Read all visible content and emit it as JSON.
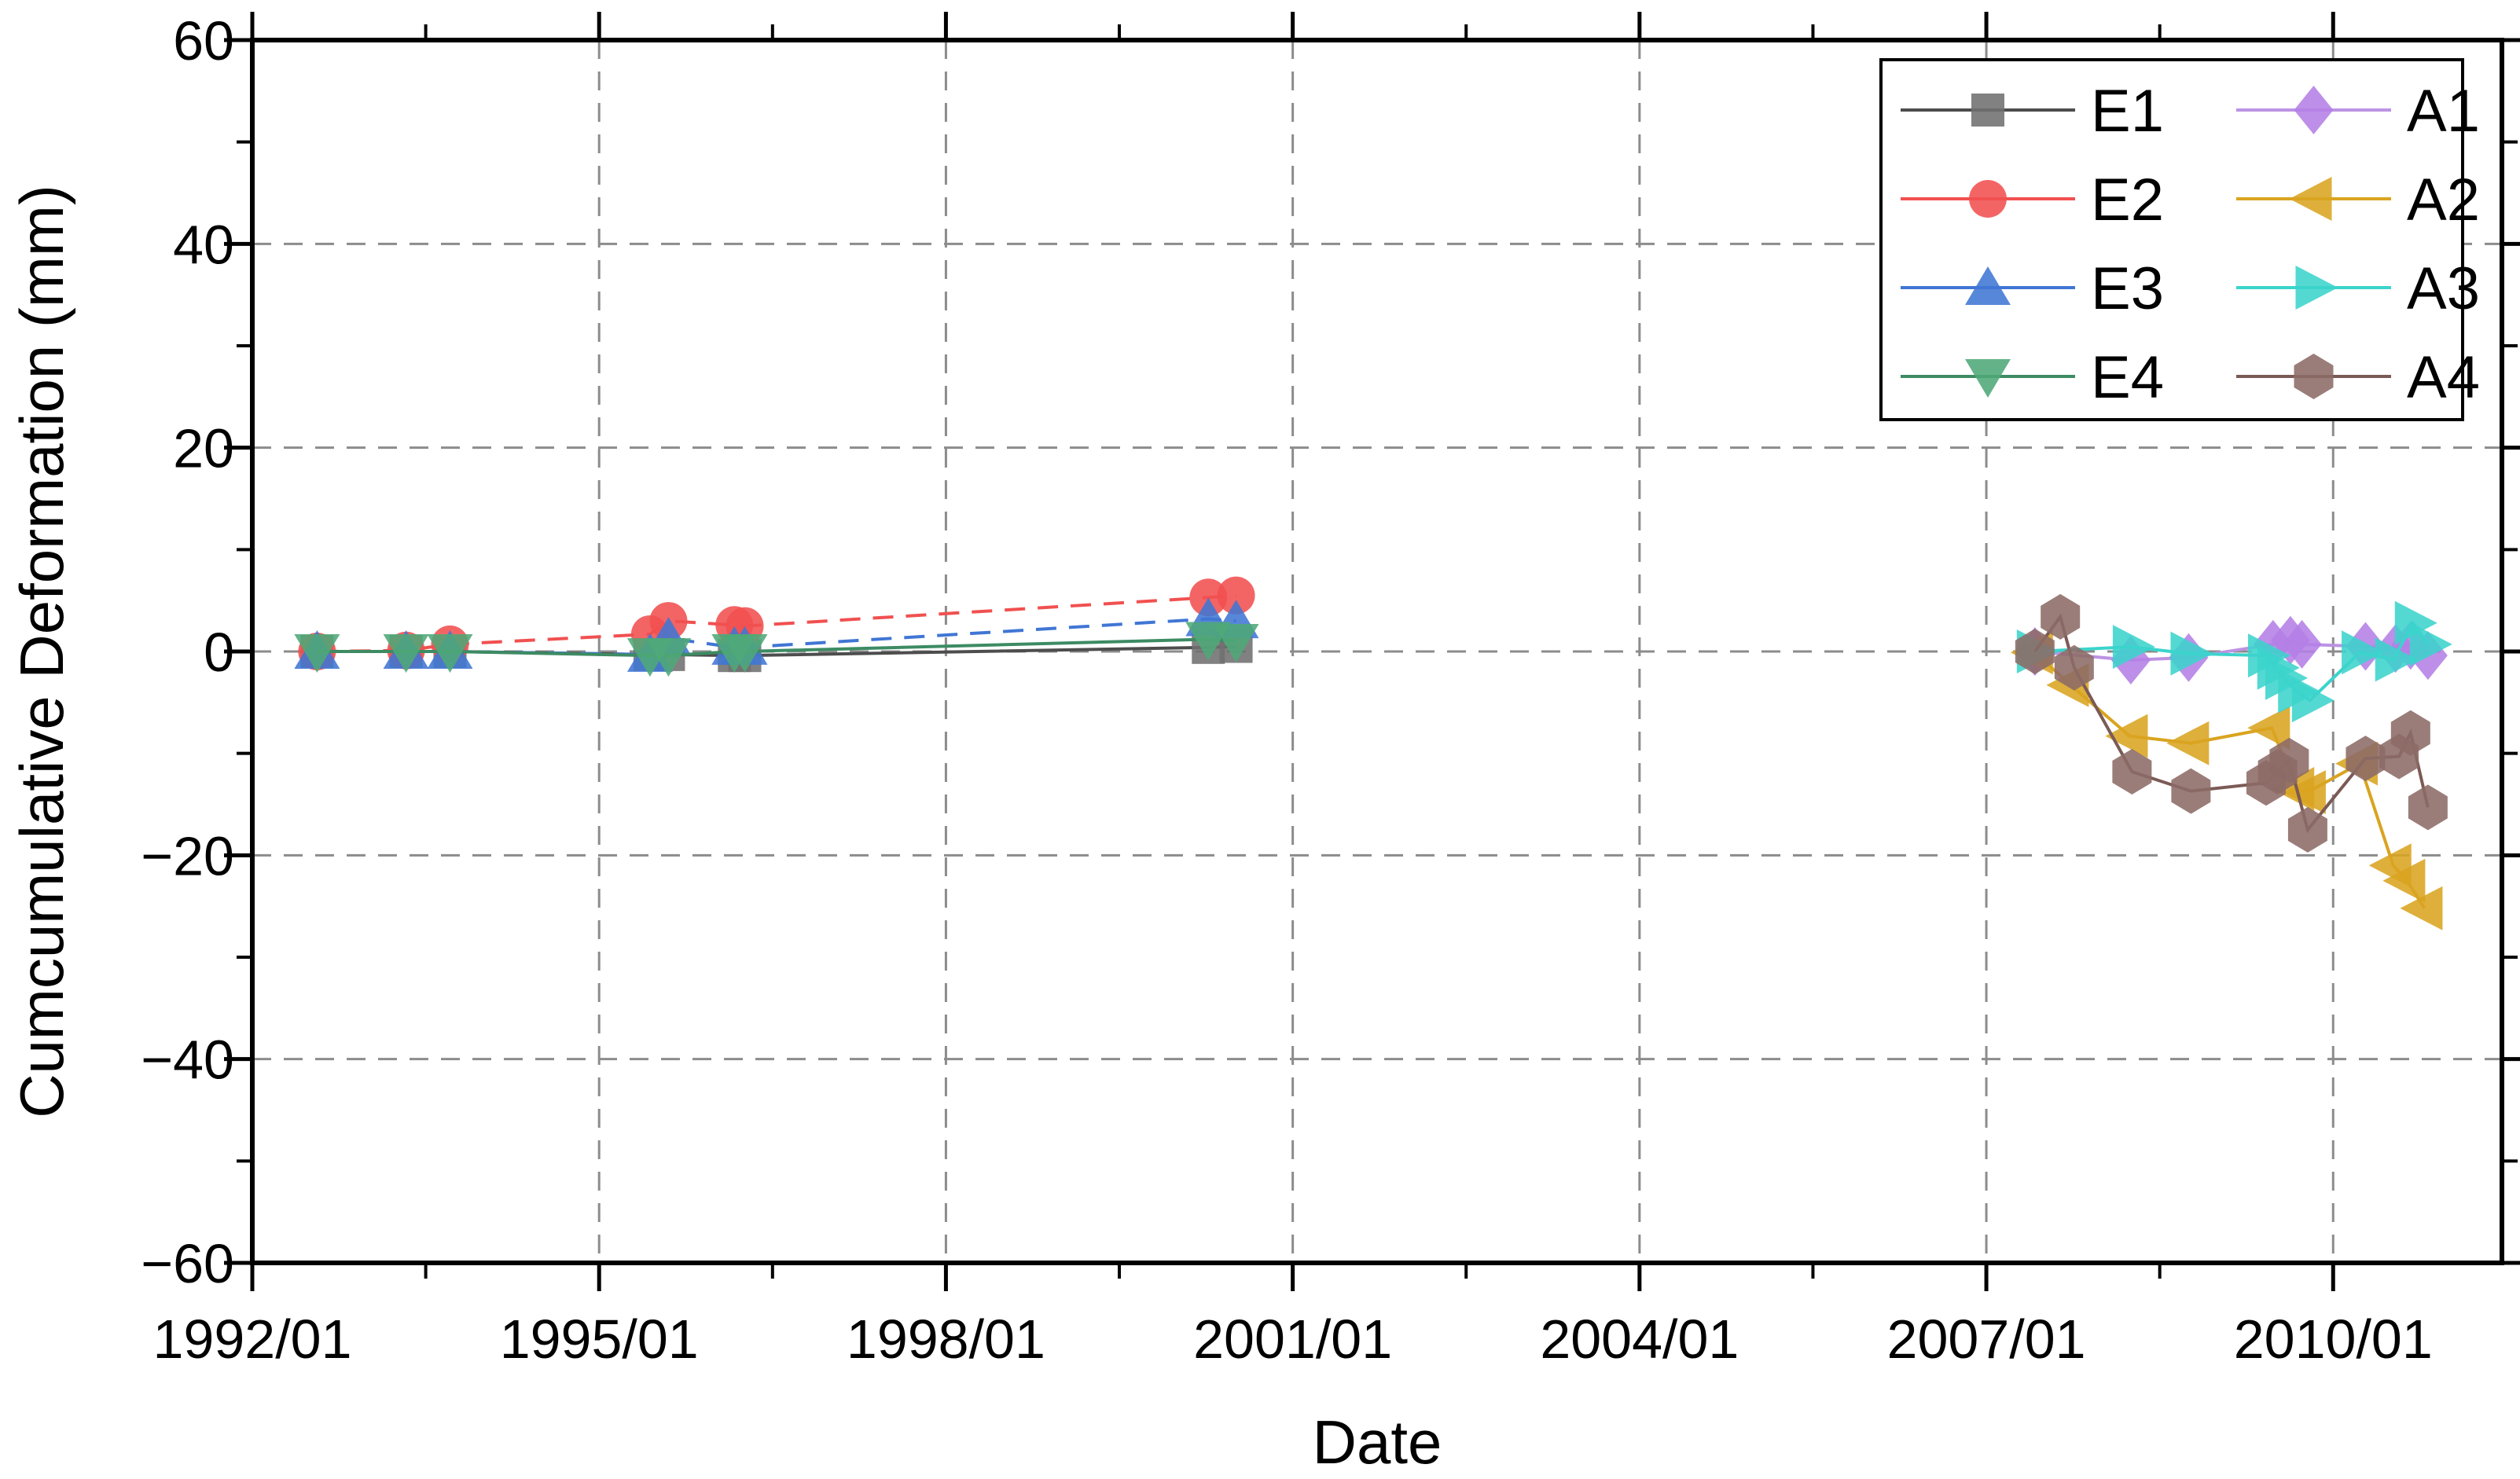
{
  "chart_data": {
    "type": "line",
    "title": "",
    "xlabel": "Date",
    "ylabel": "Cumcumulative Deformation (mm)",
    "x_tick_labels": [
      "1992/01",
      "1995/01",
      "1998/01",
      "2001/01",
      "2004/01",
      "2007/01",
      "2010/01"
    ],
    "x_tick_years": [
      1992,
      1995,
      1998,
      2001,
      2004,
      2007,
      2010
    ],
    "xlim_years": [
      1992.0,
      2011.46
    ],
    "x_minor_step_years": 1.5,
    "y_tick_labels": [
      "60",
      "40",
      "20",
      "0",
      "−20",
      "−40",
      "−60"
    ],
    "y_tick_values": [
      60,
      40,
      20,
      0,
      -20,
      -40,
      -60
    ],
    "y_minor_step": 10,
    "ylim": [
      -60,
      60
    ],
    "grid": "dashed gray at major ticks, both axes",
    "legend_position": "top-right inside box, 2 columns",
    "background_color": "#ffffff",
    "grid_color": "#8c8c8c",
    "frame_color": "#000000",
    "series": [
      {
        "name": "E1",
        "marker": "square",
        "color": "#6f6f6f",
        "line_color": "#4d4d4d",
        "line_style": "solid",
        "x": [
          1992.56,
          1993.33,
          1993.71,
          1995.44,
          1995.6,
          1996.17,
          1996.26,
          2000.27,
          2000.51
        ],
        "y": [
          0,
          0,
          0,
          -0.3,
          -0.3,
          -0.4,
          -0.4,
          0.4,
          0.5
        ]
      },
      {
        "name": "E2",
        "marker": "circle",
        "color": "#f15050",
        "line_color": "#f15050",
        "line_style": "dash",
        "x": [
          1992.56,
          1993.33,
          1993.71,
          1995.44,
          1995.6,
          1996.17,
          1996.26,
          2000.27,
          2000.51
        ],
        "y": [
          0,
          0.1,
          0.7,
          1.7,
          3.0,
          2.6,
          2.5,
          5.3,
          5.5
        ]
      },
      {
        "name": "E3",
        "marker": "triangle-up",
        "color": "#4076d4",
        "line_color": "#4076d4",
        "line_style": "dash",
        "x": [
          1992.56,
          1993.33,
          1993.71,
          1995.44,
          1995.6,
          1996.17,
          1996.26,
          2000.27,
          2000.51
        ],
        "y": [
          0,
          0,
          0,
          -0.3,
          1.3,
          0.4,
          0.4,
          3.2,
          3.0
        ]
      },
      {
        "name": "E4",
        "marker": "triangle-down",
        "color": "#4fa877",
        "line_color": "#3d8b63",
        "line_style": "solid",
        "x": [
          1992.56,
          1993.33,
          1993.71,
          1995.44,
          1995.6,
          1996.17,
          1996.26,
          2000.27,
          2000.51
        ],
        "y": [
          0,
          0,
          0,
          -0.4,
          -0.4,
          0,
          0,
          1.2,
          1.0
        ]
      },
      {
        "name": "A1",
        "marker": "diamond",
        "color": "#b47fe6",
        "line_color": "#bc93e4",
        "line_style": "solid",
        "x": [
          2007.42,
          2008.25,
          2008.75,
          2009.48,
          2009.63,
          2009.73,
          2010.28,
          2010.54,
          2010.67,
          2010.82
        ],
        "y": [
          0,
          -0.85,
          -0.6,
          0.7,
          1.1,
          0.7,
          0.5,
          0.3,
          0.6,
          -0.4
        ]
      },
      {
        "name": "A2",
        "marker": "triangle-left",
        "color": "#d9a420",
        "line_color": "#d9a420",
        "line_style": "solid",
        "x": [
          2007.42,
          2007.73,
          2008.24,
          2008.77,
          2009.47,
          2009.68,
          2009.78,
          2010.23,
          2010.52,
          2010.64,
          2010.79
        ],
        "y": [
          -0.1,
          -3.3,
          -8.3,
          -9.0,
          -7.5,
          -13.5,
          -13.8,
          -11.0,
          -21.0,
          -22.5,
          -25.2
        ]
      },
      {
        "name": "A3",
        "marker": "triangle-right",
        "color": "#3bd4cc",
        "line_color": "#3bd4cc",
        "line_style": "solid",
        "x": [
          2007.42,
          2008.25,
          2008.75,
          2009.42,
          2009.5,
          2009.57,
          2009.68,
          2009.8,
          2010.23,
          2010.52,
          2010.69,
          2010.82
        ],
        "y": [
          0,
          0.45,
          -0.2,
          -0.4,
          -1.6,
          -2.6,
          -3.9,
          -4.8,
          -0.1,
          -0.8,
          2.8,
          0.7
        ]
      },
      {
        "name": "A4",
        "marker": "hexagon",
        "color": "#8c6b67",
        "line_color": "#7b5a56",
        "line_style": "solid",
        "x": [
          2007.42,
          2007.64,
          2007.76,
          2008.26,
          2008.77,
          2009.42,
          2009.52,
          2009.62,
          2009.78,
          2010.28,
          2010.57,
          2010.67,
          2010.82
        ],
        "y": [
          0,
          3.4,
          -1.6,
          -11.8,
          -13.7,
          -12.9,
          -11.8,
          -10.7,
          -17.5,
          -10.5,
          -10.3,
          -8.0,
          -15.3
        ]
      }
    ],
    "legend_columns": [
      [
        "E1",
        "E2",
        "E3",
        "E4"
      ],
      [
        "A1",
        "A2",
        "A3",
        "A4"
      ]
    ]
  }
}
